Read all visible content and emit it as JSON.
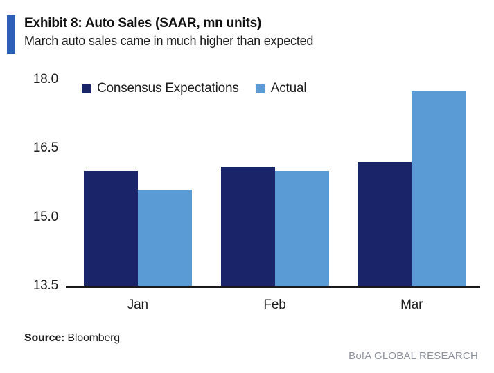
{
  "header": {
    "exhibit_title": "Exhibit 8: Auto Sales (SAAR, mn units)",
    "subtitle": "March auto sales came in much higher than expected"
  },
  "chart_data": {
    "type": "bar",
    "title": "Exhibit 8: Auto Sales (SAAR, mn units)",
    "categories": [
      "Jan",
      "Feb",
      "Mar"
    ],
    "series": [
      {
        "name": "Consensus Expectations",
        "color": "#1a2569",
        "values": [
          16.0,
          16.1,
          16.2
        ]
      },
      {
        "name": "Actual",
        "color": "#5b9bd5",
        "values": [
          15.6,
          16.0,
          17.75
        ]
      }
    ],
    "ylim": [
      13.5,
      18.0
    ],
    "yticks": [
      "18.0",
      "16.5",
      "15.0",
      "13.5"
    ],
    "xlabel": "",
    "ylabel": "",
    "grid": false,
    "legend_position": "top-left"
  },
  "footer": {
    "source_label": "Source:",
    "source_value": "Bloomberg",
    "brand": "BofA GLOBAL RESEARCH"
  },
  "colors": {
    "accent_bar": "#2f5eb8",
    "consensus": "#1a2569",
    "actual": "#5b9bd5",
    "axis_line": "#1a1a1a",
    "brand_text": "#8b909a"
  }
}
